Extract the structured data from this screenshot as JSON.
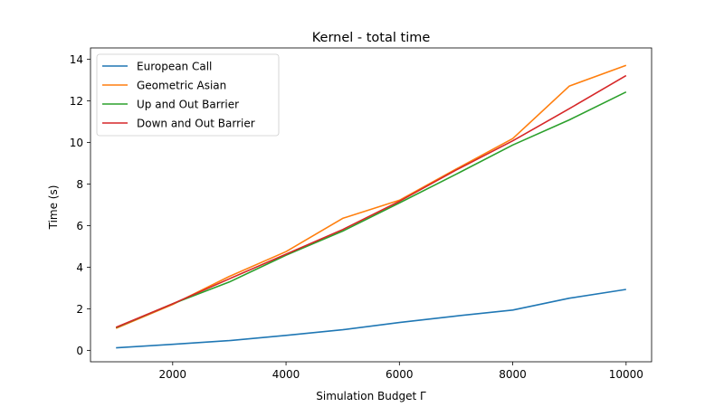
{
  "chart_data": {
    "type": "line",
    "title": "Kernel - total time",
    "xlabel": "Simulation Budget Γ",
    "ylabel": "Time (s)",
    "xlim": [
      550,
      10450
    ],
    "ylim": [
      -0.55,
      14.55
    ],
    "xticks": [
      2000,
      4000,
      6000,
      8000,
      10000
    ],
    "yticks": [
      0,
      2,
      4,
      6,
      8,
      10,
      12,
      14
    ],
    "grid": false,
    "legend_position": "top-left",
    "x": [
      1000,
      2000,
      3000,
      4000,
      5000,
      6000,
      7000,
      8000,
      9000,
      10000
    ],
    "series": [
      {
        "name": "European Call",
        "color": "#1f77b4",
        "values": [
          0.12,
          0.29,
          0.47,
          0.72,
          0.99,
          1.34,
          1.65,
          1.94,
          2.51,
          2.93
        ]
      },
      {
        "name": "Geometric Asian",
        "color": "#ff7f0e",
        "values": [
          1.06,
          2.21,
          3.56,
          4.75,
          6.35,
          7.22,
          8.72,
          10.19,
          12.72,
          13.71
        ]
      },
      {
        "name": "Up and Out Barrier",
        "color": "#2ca02c",
        "values": [
          1.09,
          2.24,
          3.29,
          4.58,
          5.74,
          7.09,
          8.47,
          9.88,
          11.09,
          12.43
        ]
      },
      {
        "name": "Down and Out Barrier",
        "color": "#d62728",
        "values": [
          1.11,
          2.24,
          3.44,
          4.63,
          5.81,
          7.17,
          8.67,
          10.08,
          11.63,
          13.22
        ]
      }
    ]
  }
}
